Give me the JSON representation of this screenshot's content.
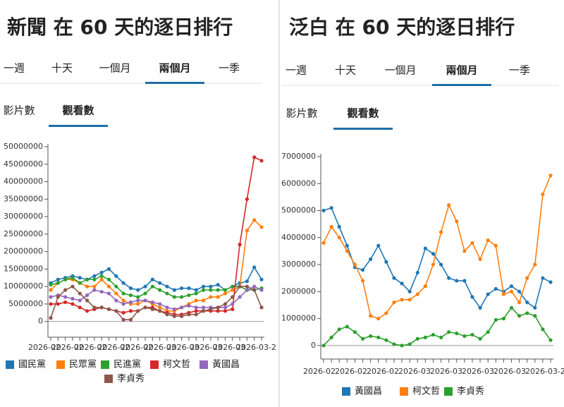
{
  "panels": [
    {
      "title": "新聞 在 60 天的逐日排行",
      "period_tabs": [
        "一週",
        "十天",
        "一個月",
        "兩個月",
        "一季"
      ],
      "metric_tabs": [
        "影片數",
        "觀看數"
      ]
    },
    {
      "title": "泛白 在 60 天的逐日排行",
      "period_tabs": [
        "一週",
        "十天",
        "一個月",
        "兩個月",
        "一季"
      ],
      "metric_tabs": [
        "影片數",
        "觀看數"
      ]
    }
  ],
  "chart_data": [
    {
      "type": "line",
      "categories": [
        null,
        null,
        null,
        null,
        null,
        null,
        null,
        null,
        null,
        null,
        null,
        null,
        null,
        null,
        null,
        null,
        null,
        null,
        null,
        null,
        null,
        null,
        null,
        null,
        null,
        null,
        null,
        null,
        null,
        null
      ],
      "x_tick_labels": [
        "2026-02",
        "2026-02",
        "2026-02",
        "2026-02",
        "2026-02",
        "2026-03",
        "2026-03",
        "2026-03",
        "2026-03",
        "2026-03-2"
      ],
      "ylim": [
        -4500000,
        50000000
      ],
      "yticks": [
        0,
        5000000,
        10000000,
        15000000,
        20000000,
        25000000,
        30000000,
        35000000,
        40000000,
        45000000,
        50000000
      ],
      "series": [
        {
          "name": "國民黨",
          "color": "#1f77b4",
          "values": [
            11000000,
            12000000,
            12500000,
            13000000,
            12500000,
            12000000,
            13000000,
            14000000,
            15000000,
            13000000,
            11000000,
            9500000,
            9000000,
            10000000,
            12000000,
            11000000,
            10000000,
            9000000,
            9500000,
            9500000,
            9000000,
            10000000,
            10000000,
            10500000,
            9000000,
            10000000,
            11000000,
            11500000,
            15500000,
            12000000
          ]
        },
        {
          "name": "民眾黨",
          "color": "#ff7f0e",
          "values": [
            9000000,
            11000000,
            12000000,
            12000000,
            11000000,
            10000000,
            10000000,
            12000000,
            10000000,
            8000000,
            6000000,
            5000000,
            5000000,
            6000000,
            5000000,
            4000000,
            3000000,
            3000000,
            4000000,
            5000000,
            6000000,
            6000000,
            7000000,
            7000000,
            8000000,
            9000000,
            10000000,
            26000000,
            29000000,
            27000000
          ]
        },
        {
          "name": "民進黨",
          "color": "#2ca02c",
          "values": [
            10500000,
            11000000,
            12000000,
            12500000,
            11000000,
            12000000,
            12000000,
            13000000,
            12000000,
            10000000,
            8000000,
            7500000,
            7000000,
            8000000,
            10000000,
            9000000,
            8000000,
            7000000,
            7000000,
            7500000,
            8000000,
            9000000,
            9000000,
            9000000,
            9000000,
            10000000,
            10000000,
            9000000,
            9000000,
            9500000
          ]
        },
        {
          "name": "柯文哲",
          "color": "#d62728",
          "values": [
            5000000,
            5000000,
            5500000,
            5000000,
            4000000,
            3000000,
            3500000,
            4000000,
            3500000,
            3000000,
            2500000,
            3000000,
            3000000,
            4000000,
            4000000,
            3000000,
            2500000,
            2000000,
            2000000,
            2500000,
            3000000,
            3000000,
            3000000,
            3000000,
            3000000,
            3500000,
            22000000,
            35000000,
            47000000,
            46000000
          ]
        },
        {
          "name": "黃國昌",
          "color": "#9467bd",
          "values": [
            7000000,
            7500000,
            7000000,
            6500000,
            6000000,
            7500000,
            9000000,
            8500000,
            8000000,
            6000000,
            5000000,
            5500000,
            6000000,
            6000000,
            5500000,
            5000000,
            4000000,
            3500000,
            4000000,
            4500000,
            4000000,
            4000000,
            4000000,
            4000000,
            4000000,
            5000000,
            7000000,
            9000000,
            10000000,
            9000000
          ]
        },
        {
          "name": "李貞秀",
          "color": "#8c564b",
          "values": [
            1000000,
            7000000,
            9000000,
            10000000,
            8000000,
            6000000,
            4000000,
            4000000,
            3500000,
            3000000,
            500000,
            500000,
            3000000,
            4000000,
            3500000,
            3000000,
            2000000,
            1500000,
            1500000,
            2000000,
            2000000,
            3000000,
            3500000,
            4000000,
            5000000,
            7000000,
            10000000,
            10000000,
            9000000,
            4000000
          ]
        }
      ]
    },
    {
      "type": "line",
      "categories": [
        null,
        null,
        null,
        null,
        null,
        null,
        null,
        null,
        null,
        null,
        null,
        null,
        null,
        null,
        null,
        null,
        null,
        null,
        null,
        null,
        null,
        null,
        null,
        null,
        null,
        null,
        null,
        null,
        null,
        null
      ],
      "x_tick_labels": [
        "2026-02",
        "2026-02",
        "2026-02",
        "2026-03",
        "2026-03",
        "2026-03",
        "2026-03",
        "2026-03-2"
      ],
      "ylim": [
        -500000,
        7000000
      ],
      "yticks": [
        0,
        1000000,
        2000000,
        3000000,
        4000000,
        5000000,
        6000000,
        7000000
      ],
      "series": [
        {
          "name": "黃國昌",
          "color": "#1f77b4",
          "values": [
            5000000,
            5100000,
            4400000,
            3700000,
            2900000,
            2800000,
            3200000,
            3700000,
            3100000,
            2500000,
            2300000,
            2000000,
            2700000,
            3600000,
            3400000,
            3000000,
            2500000,
            2400000,
            2400000,
            1800000,
            1400000,
            1900000,
            2100000,
            2000000,
            2200000,
            2000000,
            1600000,
            1400000,
            2500000,
            2350000
          ]
        },
        {
          "name": "柯文哲",
          "color": "#ff7f0e",
          "values": [
            3800000,
            4400000,
            4000000,
            3500000,
            3000000,
            2400000,
            1100000,
            1000000,
            1200000,
            1600000,
            1700000,
            1700000,
            1900000,
            2200000,
            3000000,
            4200000,
            5200000,
            4600000,
            3500000,
            3800000,
            3200000,
            3900000,
            3700000,
            1900000,
            2000000,
            1600000,
            2500000,
            3000000,
            5600000,
            6300000
          ]
        },
        {
          "name": "李貞秀",
          "color": "#2ca02c",
          "values": [
            0,
            300000,
            600000,
            700000,
            500000,
            250000,
            350000,
            300000,
            200000,
            50000,
            0,
            50000,
            250000,
            300000,
            400000,
            300000,
            500000,
            450000,
            350000,
            400000,
            250000,
            500000,
            950000,
            1000000,
            1400000,
            1100000,
            1200000,
            1100000,
            600000,
            200000
          ]
        }
      ]
    }
  ]
}
